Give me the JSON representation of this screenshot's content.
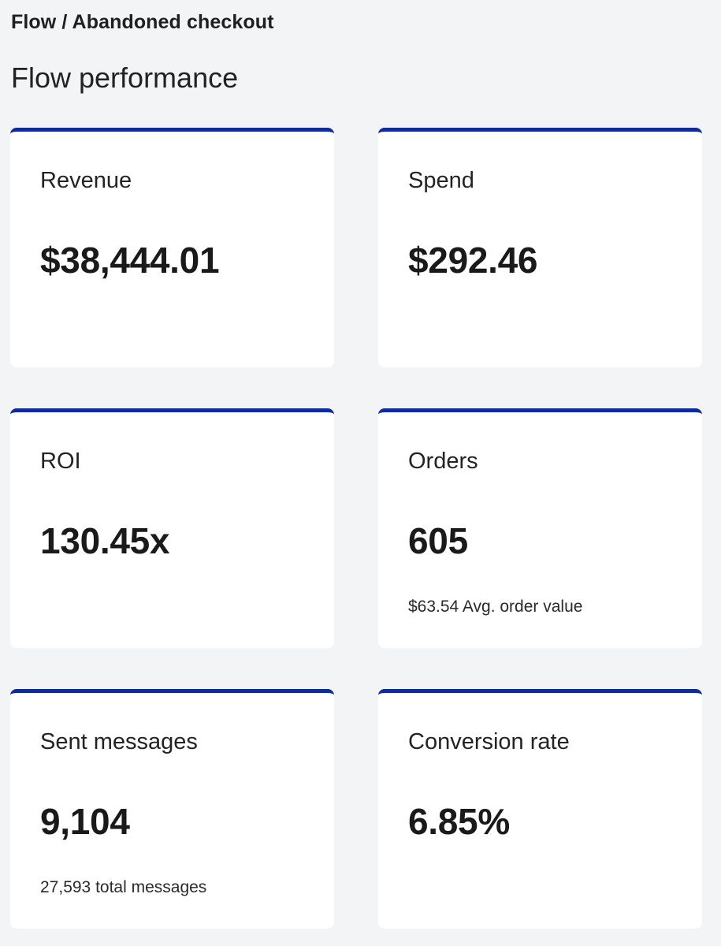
{
  "breadcrumb": "Flow / Abandoned checkout",
  "page_title": "Flow performance",
  "colors": {
    "accent": "#0f2a9c",
    "background": "#f3f4f6",
    "card": "#ffffff"
  },
  "cards": [
    {
      "label": "Revenue",
      "value": "$38,444.01",
      "sub": ""
    },
    {
      "label": "Spend",
      "value": "$292.46",
      "sub": ""
    },
    {
      "label": "ROI",
      "value": "130.45x",
      "sub": ""
    },
    {
      "label": "Orders",
      "value": "605",
      "sub": "$63.54 Avg. order value"
    },
    {
      "label": "Sent messages",
      "value": "9,104",
      "sub": "27,593 total messages"
    },
    {
      "label": "Conversion rate",
      "value": "6.85%",
      "sub": ""
    }
  ]
}
